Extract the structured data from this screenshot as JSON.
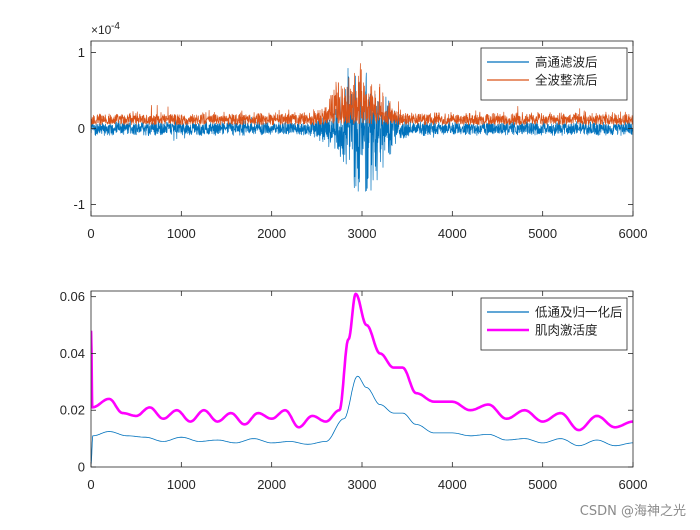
{
  "watermark": "CSDN @海神之光",
  "chart_data": [
    {
      "type": "line",
      "title": "",
      "xlabel": "",
      "ylabel": "",
      "exponent_label": "×10",
      "exponent_power": "-4",
      "xlim": [
        0,
        6000
      ],
      "ylim": [
        -1.15,
        1.15
      ],
      "xticks": [
        0,
        1000,
        2000,
        3000,
        4000,
        5000,
        6000
      ],
      "yticks": [
        -1,
        0,
        1
      ],
      "legend_position": "top-right",
      "series": [
        {
          "name": "高通滤波后",
          "color": "#0072BD",
          "style": "noisy-signal",
          "baseline": 0,
          "noise_amplitude": 0.1,
          "burst_center": 3000,
          "burst_width": 300,
          "burst_peak_min": -1.15,
          "burst_peak_max": 1.05
        },
        {
          "name": "全波整流后",
          "color": "#D95319",
          "style": "rectified-signal",
          "baseline": 0.05,
          "noise_amplitude": 0.17,
          "burst_center": 2950,
          "burst_width": 300,
          "burst_peak_max": 1.15
        }
      ]
    },
    {
      "type": "line",
      "title": "",
      "xlabel": "",
      "ylabel": "",
      "xlim": [
        0,
        6000
      ],
      "ylim": [
        0,
        0.062
      ],
      "xticks": [
        0,
        1000,
        2000,
        3000,
        4000,
        5000,
        6000
      ],
      "yticks": [
        0,
        0.02,
        0.04,
        0.06
      ],
      "ytick_labels": [
        "0",
        "0.02",
        "0.04",
        "0.06"
      ],
      "legend_position": "top-right",
      "series": [
        {
          "name": "低通及归一化后",
          "color": "#0072BD",
          "linewidth": "thin",
          "x": [
            0,
            20,
            200,
            400,
            600,
            800,
            1000,
            1200,
            1400,
            1600,
            1800,
            2000,
            2200,
            2400,
            2600,
            2800,
            2950,
            3050,
            3200,
            3350,
            3450,
            3600,
            3800,
            4000,
            4200,
            4400,
            4600,
            4800,
            5000,
            5200,
            5400,
            5600,
            5800,
            6000
          ],
          "y": [
            0.001,
            0.011,
            0.0125,
            0.011,
            0.0105,
            0.009,
            0.0105,
            0.009,
            0.0095,
            0.0085,
            0.01,
            0.0085,
            0.009,
            0.008,
            0.009,
            0.017,
            0.032,
            0.028,
            0.022,
            0.019,
            0.019,
            0.015,
            0.012,
            0.012,
            0.011,
            0.0115,
            0.0095,
            0.01,
            0.0085,
            0.01,
            0.0075,
            0.0095,
            0.0075,
            0.0085
          ]
        },
        {
          "name": "肌肉激活度",
          "color": "#FF00FF",
          "linewidth": "thick",
          "x": [
            0,
            15,
            200,
            350,
            500,
            650,
            800,
            950,
            1100,
            1250,
            1400,
            1550,
            1700,
            1850,
            2000,
            2150,
            2300,
            2450,
            2600,
            2750,
            2850,
            2930,
            3050,
            3200,
            3350,
            3450,
            3600,
            3800,
            4000,
            4200,
            4400,
            4600,
            4800,
            5000,
            5200,
            5400,
            5600,
            5800,
            6000
          ],
          "y": [
            0.048,
            0.021,
            0.024,
            0.019,
            0.018,
            0.021,
            0.017,
            0.02,
            0.016,
            0.02,
            0.016,
            0.019,
            0.015,
            0.019,
            0.017,
            0.02,
            0.014,
            0.018,
            0.016,
            0.02,
            0.045,
            0.061,
            0.05,
            0.04,
            0.035,
            0.035,
            0.026,
            0.023,
            0.023,
            0.02,
            0.022,
            0.017,
            0.02,
            0.016,
            0.019,
            0.013,
            0.018,
            0.014,
            0.016
          ]
        }
      ]
    }
  ]
}
